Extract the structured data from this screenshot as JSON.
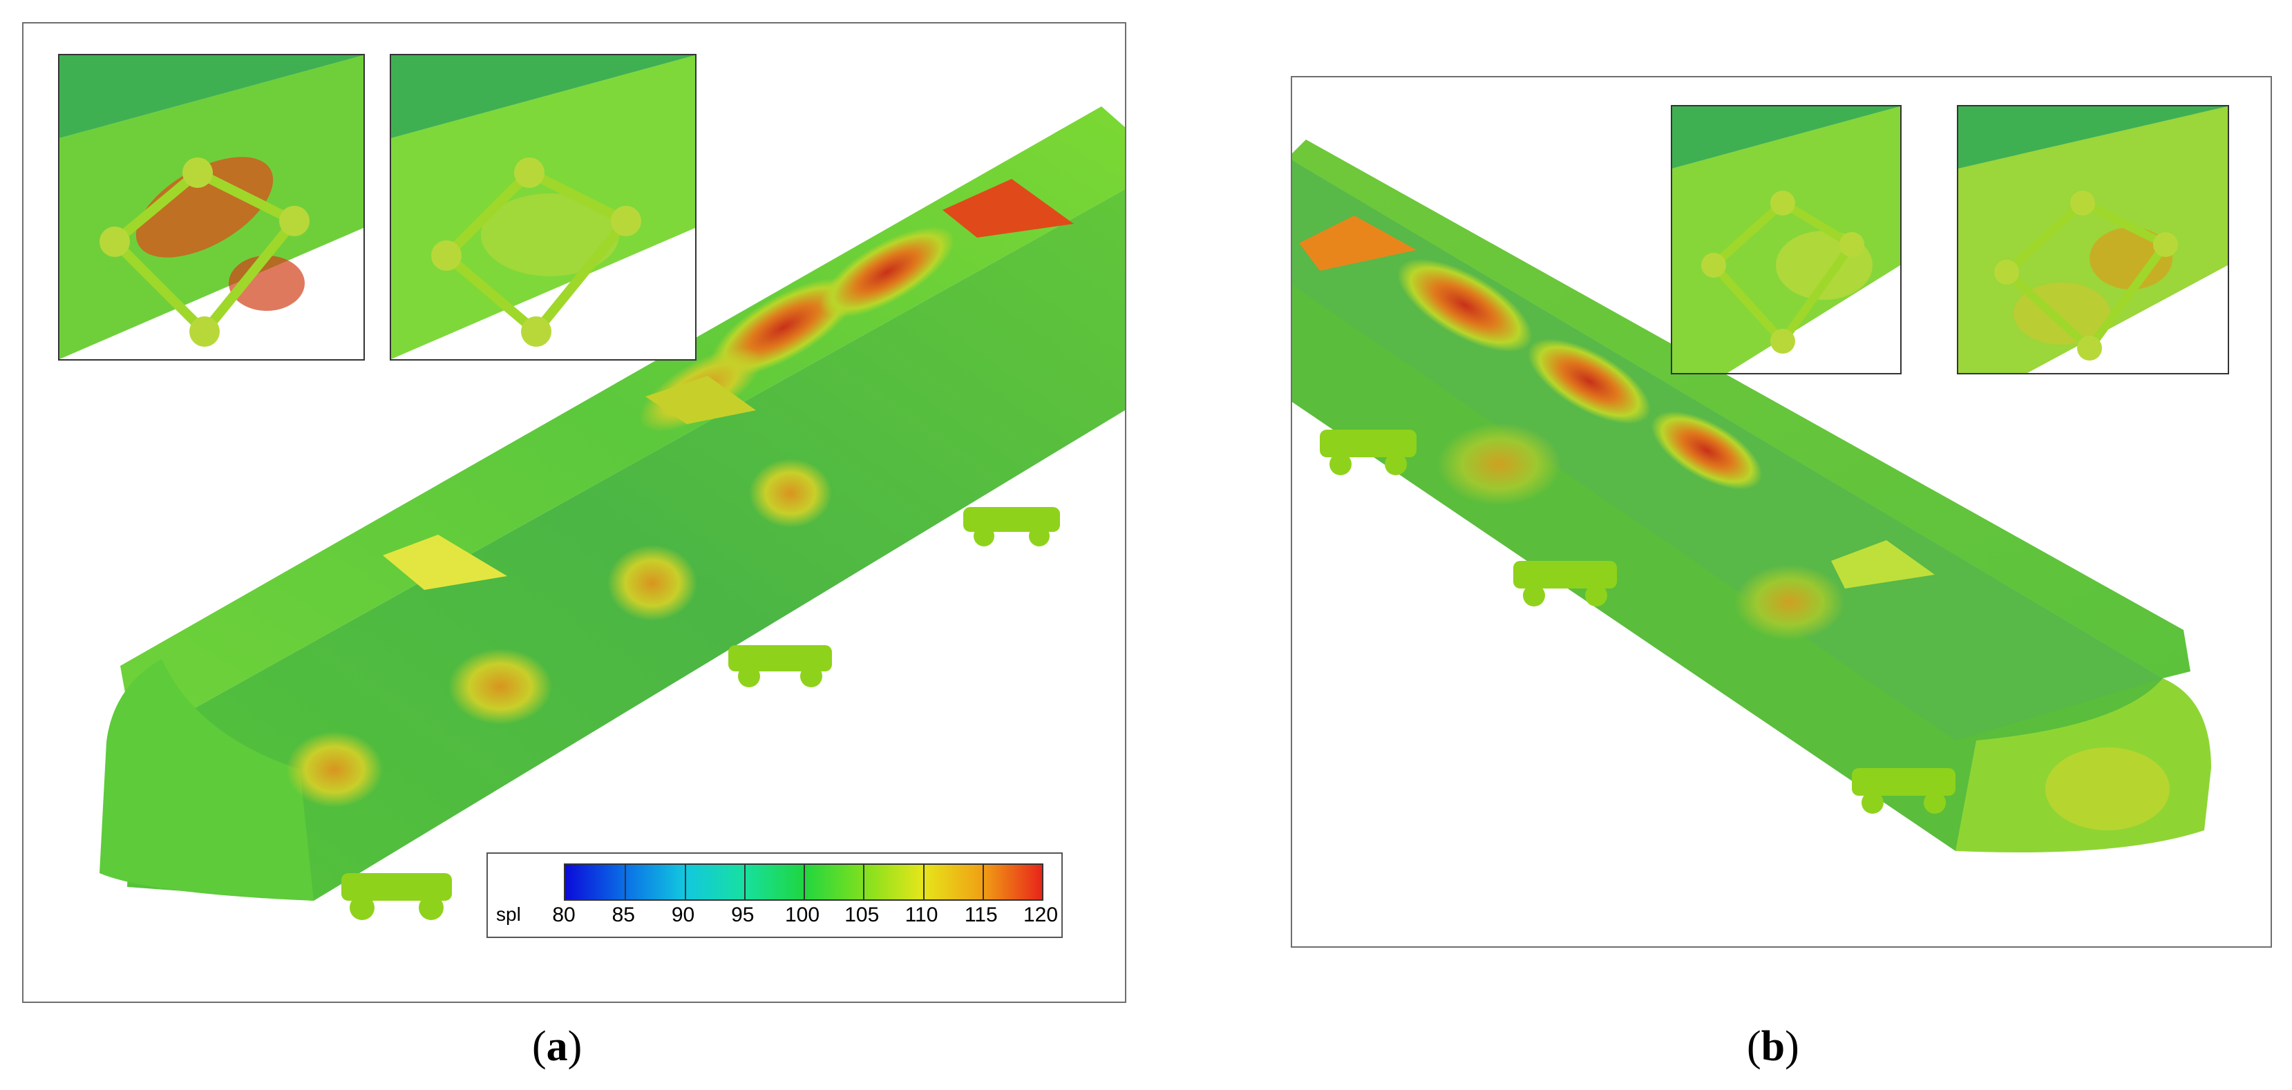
{
  "figure": {
    "panel_a": {
      "caption_letter": "a"
    },
    "panel_b": {
      "caption_letter": "b"
    }
  },
  "legend": {
    "variable": "spl",
    "ticks": [
      "80",
      "85",
      "90",
      "95",
      "100",
      "105",
      "110",
      "115",
      "120"
    ],
    "colors": [
      "#0b0bd9",
      "#0a6fe6",
      "#12c7e0",
      "#17e0a0",
      "#1fd640",
      "#7fe01e",
      "#e6e61a",
      "#f0a014",
      "#e8251a"
    ]
  },
  "colors": {
    "train_base": "#4cc93a",
    "hotspot": "#d9411a",
    "frame": "#6e6e6e"
  },
  "icons": [
    "train-body",
    "bogie-inset"
  ]
}
